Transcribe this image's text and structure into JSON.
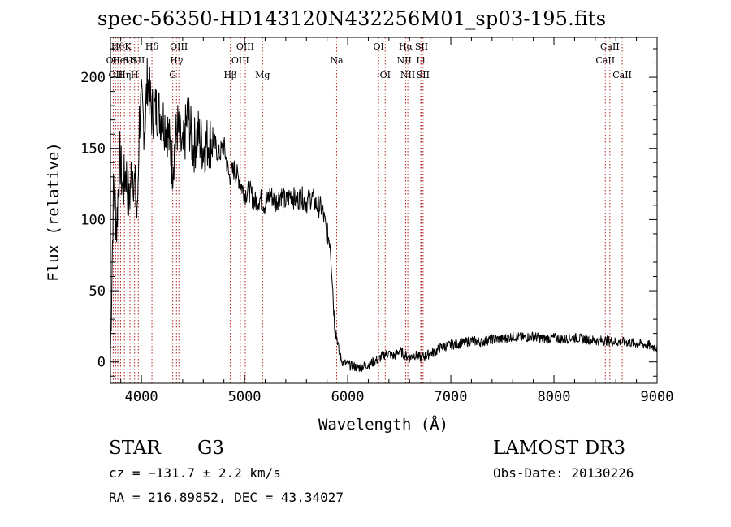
{
  "chart_data": {
    "type": "line",
    "title": "spec-56350-HD143120N432256M01_sp03-195.fits",
    "xlabel": "Wavelength (Å)",
    "ylabel": "Flux (relative)",
    "xlim": [
      3700,
      9000
    ],
    "ylim": [
      -15,
      228
    ],
    "x_ticks": [
      4000,
      5000,
      6000,
      7000,
      8000,
      9000
    ],
    "y_ticks": [
      0,
      50,
      100,
      150,
      200
    ],
    "colors": {
      "line": "#000000",
      "marker": "#b22222",
      "frame": "#000000"
    },
    "series": [
      {
        "name": "flux",
        "x": [
          3700,
          3730,
          3760,
          3790,
          3820,
          3850,
          3880,
          3910,
          3940,
          3960,
          3980,
          4000,
          4030,
          4060,
          4100,
          4150,
          4200,
          4250,
          4300,
          4350,
          4400,
          4450,
          4500,
          4550,
          4600,
          4650,
          4700,
          4750,
          4800,
          4850,
          4900,
          4950,
          5000,
          5050,
          5100,
          5150,
          5200,
          5250,
          5300,
          5350,
          5400,
          5450,
          5500,
          5550,
          5600,
          5650,
          5700,
          5750,
          5800,
          5830,
          5850,
          5870,
          5900,
          5920,
          5950,
          6000,
          6050,
          6100,
          6150,
          6200,
          6250,
          6300,
          6350,
          6400,
          6450,
          6500,
          6550,
          6600,
          6650,
          6700,
          6750,
          6800,
          6850,
          6900,
          7000,
          7100,
          7200,
          7300,
          7400,
          7500,
          7600,
          7700,
          7800,
          7900,
          8000,
          8100,
          8200,
          8300,
          8400,
          8500,
          8600,
          8700,
          8800,
          8900,
          9000
        ],
        "y": [
          5,
          125,
          95,
          145,
          120,
          135,
          110,
          140,
          120,
          100,
          170,
          180,
          165,
          200,
          175,
          178,
          172,
          165,
          138,
          165,
          145,
          175,
          150,
          160,
          150,
          155,
          155,
          145,
          152,
          130,
          135,
          128,
          118,
          120,
          112,
          115,
          110,
          118,
          112,
          118,
          112,
          118,
          113,
          116,
          112,
          116,
          110,
          108,
          90,
          85,
          60,
          30,
          15,
          5,
          0,
          -2,
          -3,
          -4,
          -3,
          -2,
          0,
          2,
          5,
          6,
          4,
          8,
          5,
          3,
          5,
          3,
          4,
          6,
          7,
          10,
          12,
          13,
          15,
          14,
          16,
          16,
          18,
          17,
          18,
          16,
          17,
          16,
          17,
          16,
          15,
          15,
          14,
          14,
          13,
          12,
          10
        ]
      }
    ],
    "line_markers": [
      {
        "wl": 3727,
        "row": 2,
        "label": "OII"
      },
      {
        "wl": 3750,
        "row": 3,
        "label": "OII"
      },
      {
        "wl": 3771,
        "row": 1,
        "label": "Hθ"
      },
      {
        "wl": 3798,
        "row": 2,
        "label": "HeI"
      },
      {
        "wl": 3835,
        "row": 3,
        "label": "Hη"
      },
      {
        "wl": 3869,
        "row": 1,
        "label": "K"
      },
      {
        "wl": 3889,
        "row": 2,
        "label": "SII"
      },
      {
        "wl": 3934,
        "row": 3,
        "label": "H"
      },
      {
        "wl": 3970,
        "row": 2,
        "label": "SII"
      },
      {
        "wl": 4102,
        "row": 1,
        "label": "Hδ"
      },
      {
        "wl": 4304,
        "row": 3,
        "label": "G"
      },
      {
        "wl": 4340,
        "row": 2,
        "label": "Hγ"
      },
      {
        "wl": 4363,
        "row": 1,
        "label": "OIII"
      },
      {
        "wl": 4861,
        "row": 3,
        "label": "Hβ"
      },
      {
        "wl": 4959,
        "row": 2,
        "label": "OIII"
      },
      {
        "wl": 5007,
        "row": 1,
        "label": "OIII"
      },
      {
        "wl": 5175,
        "row": 3,
        "label": "Mg"
      },
      {
        "wl": 5893,
        "row": 2,
        "label": "Na"
      },
      {
        "wl": 6300,
        "row": 1,
        "label": "OI"
      },
      {
        "wl": 6364,
        "row": 3,
        "label": "OI"
      },
      {
        "wl": 6548,
        "row": 2,
        "label": "NII"
      },
      {
        "wl": 6563,
        "row": 1,
        "label": "Hα"
      },
      {
        "wl": 6583,
        "row": 3,
        "label": "NII"
      },
      {
        "wl": 6708,
        "row": 2,
        "label": "Li"
      },
      {
        "wl": 6716,
        "row": 1,
        "label": "SII"
      },
      {
        "wl": 6731,
        "row": 3,
        "label": "SII"
      },
      {
        "wl": 8498,
        "row": 2,
        "label": "CaII"
      },
      {
        "wl": 8542,
        "row": 1,
        "label": "CaII"
      },
      {
        "wl": 8662,
        "row": 3,
        "label": "CaII"
      }
    ]
  },
  "info": {
    "object_type": "STAR",
    "subclass": "G3",
    "survey": "LAMOST DR3",
    "cz": "cz = −131.7 ± 2.2 km/s",
    "obs_date": "Obs-Date: 20130226",
    "coords": "RA = 216.89852, DEC =  43.34027"
  }
}
